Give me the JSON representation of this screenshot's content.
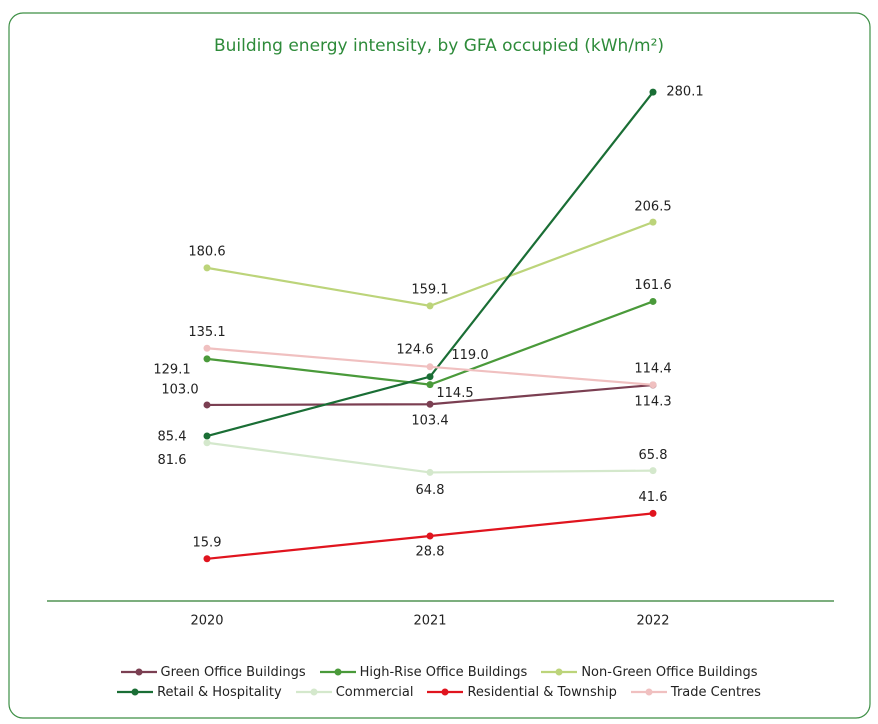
{
  "chart_data": {
    "type": "line",
    "title": "Building energy intensity, by GFA occupied (kWh/m²)",
    "x": [
      "2020",
      "2021",
      "2022"
    ],
    "ylim": [
      -8,
      300
    ],
    "series": [
      {
        "name": "Green Office Buildings",
        "color": "#7b3f52",
        "values": [
          103.0,
          103.4,
          114.3
        ],
        "value_labels": [
          "103.0",
          "103.4",
          "114.3"
        ]
      },
      {
        "name": "High-Rise Office Buildings",
        "color": "#4a9a3a",
        "values": [
          129.1,
          114.5,
          161.6
        ],
        "value_labels": [
          "129.1",
          "114.5",
          "161.6"
        ]
      },
      {
        "name": "Non-Green Office Buildings",
        "color": "#bcd47a",
        "values": [
          180.6,
          159.1,
          206.5
        ],
        "value_labels": [
          "180.6",
          "159.1",
          "206.5"
        ]
      },
      {
        "name": "Retail & Hospitality",
        "color": "#1a6e35",
        "values": [
          85.4,
          119.0,
          280.1
        ],
        "value_labels": [
          "85.4",
          "119.0",
          "280.1"
        ]
      },
      {
        "name": "Commercial",
        "color": "#d4e8cc",
        "values": [
          81.6,
          64.8,
          65.8
        ],
        "value_labels": [
          "81.6",
          "64.8",
          "65.8"
        ]
      },
      {
        "name": "Residential & Township",
        "color": "#e0141e",
        "values": [
          15.9,
          28.8,
          41.6
        ],
        "value_labels": [
          "15.9",
          "28.8",
          "41.6"
        ]
      },
      {
        "name": "Trade Centres",
        "color": "#f0c0c0",
        "values": [
          135.1,
          124.6,
          114.4
        ],
        "value_labels": [
          "135.1",
          "124.6",
          "114.4"
        ]
      }
    ]
  }
}
